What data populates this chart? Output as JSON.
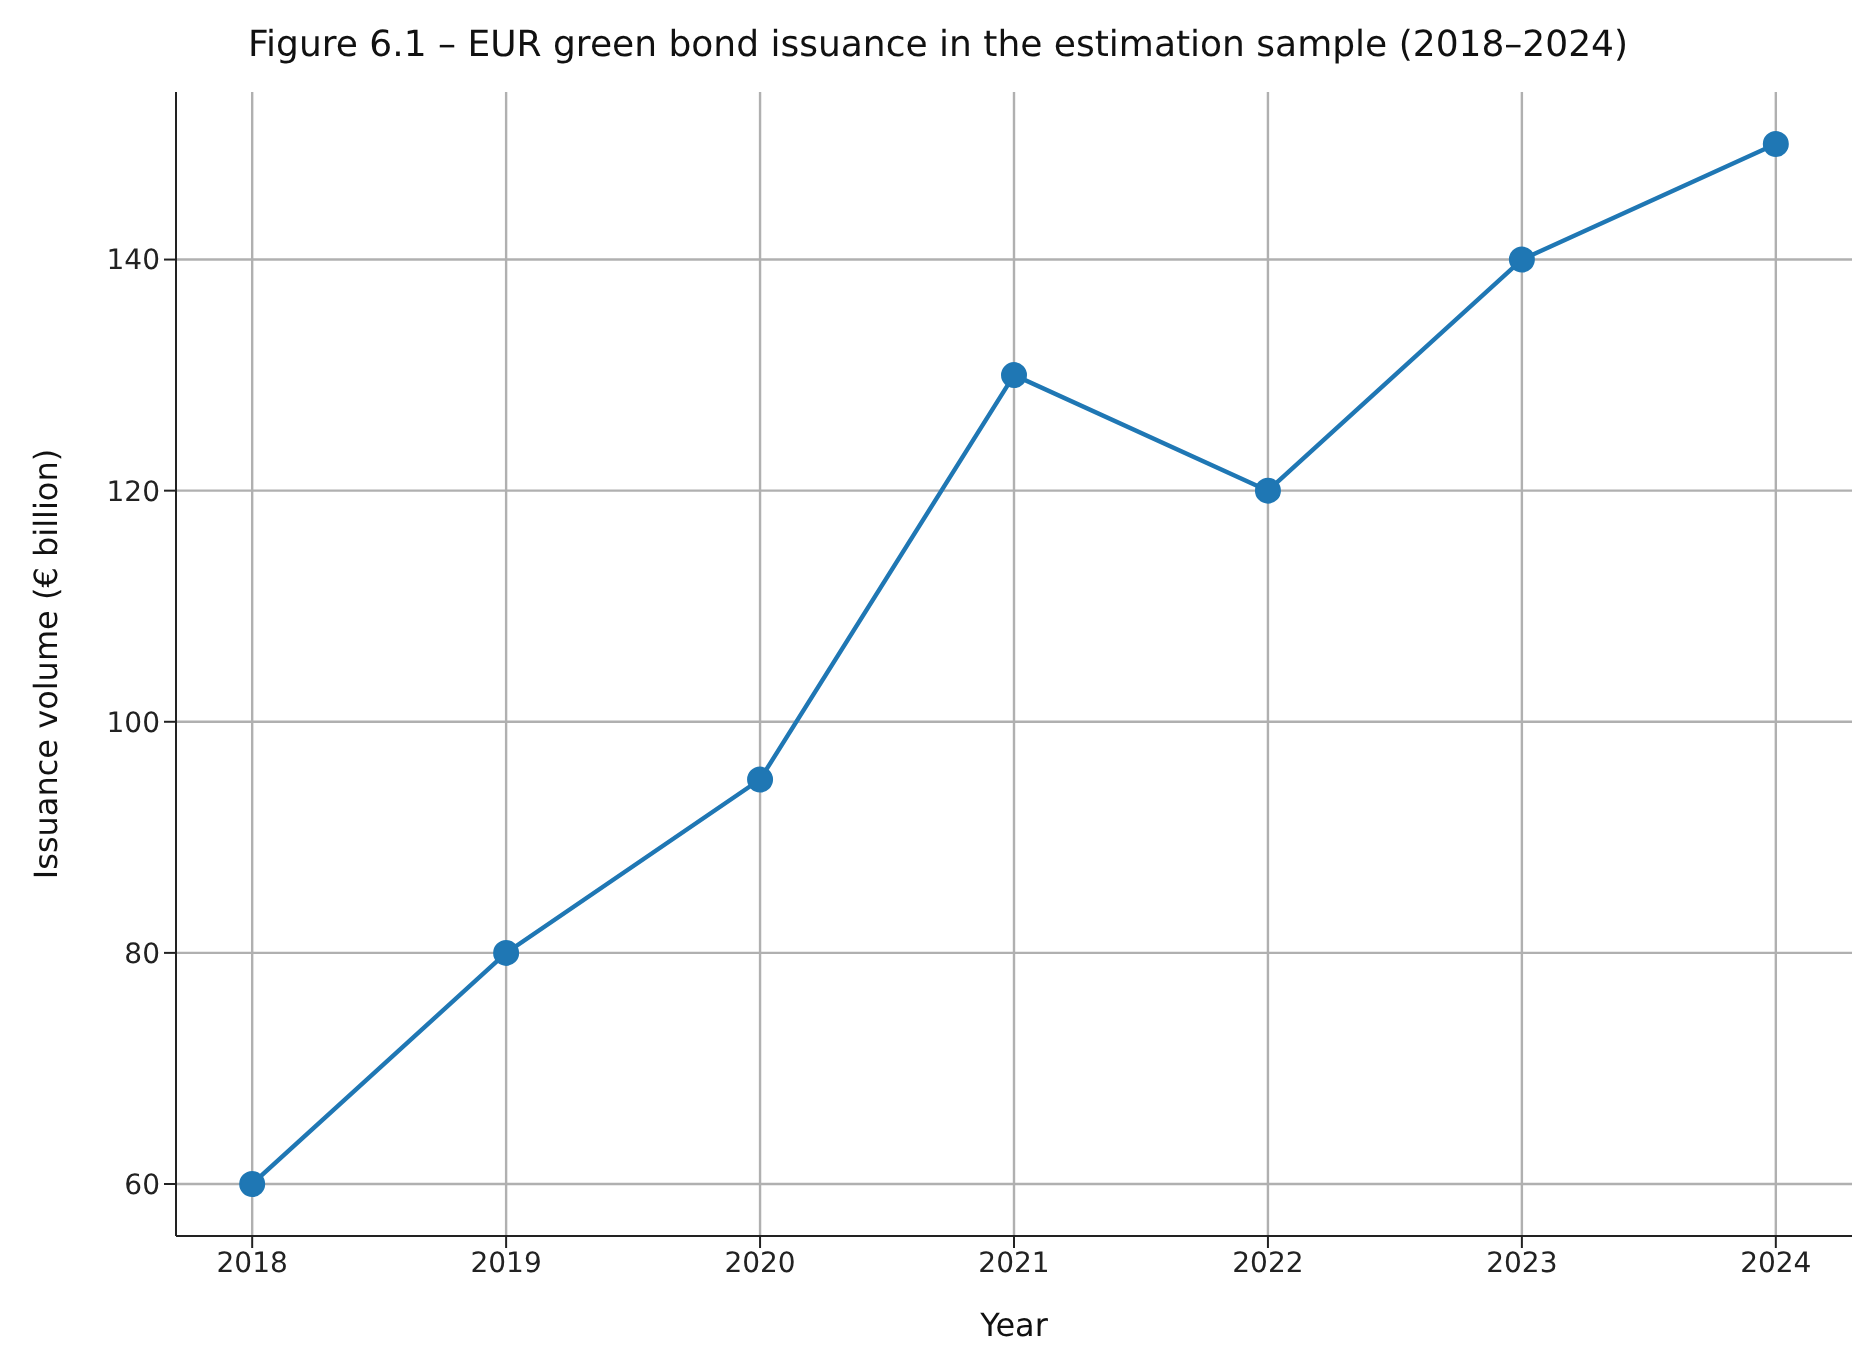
{
  "chart_data": {
    "type": "line",
    "title": "Figure 6.1 – EUR green bond issuance in the estimation sample (2018–2024)",
    "xlabel": "Year",
    "ylabel": "Issuance volume (€ billion)",
    "x": [
      2018,
      2019,
      2020,
      2021,
      2022,
      2023,
      2024
    ],
    "series": [
      {
        "color": "#1f77b4",
        "values": [
          60,
          80,
          95,
          130,
          120,
          140,
          150
        ]
      }
    ],
    "xlim": [
      2017.7,
      2024.3
    ],
    "xticks": [
      2018,
      2019,
      2020,
      2021,
      2022,
      2023,
      2024
    ],
    "ylim": [
      55.5,
      154.5
    ],
    "yticks": [
      60,
      80,
      100,
      120,
      140
    ],
    "grid": true,
    "marker": "circle",
    "line_style": "solid",
    "legend": false
  }
}
